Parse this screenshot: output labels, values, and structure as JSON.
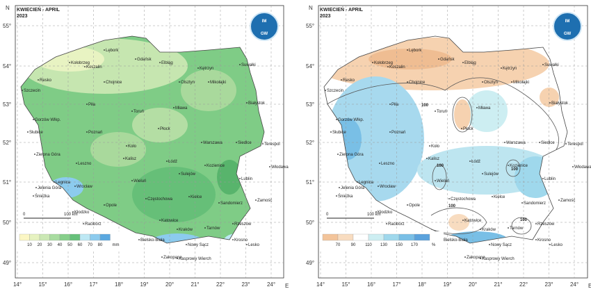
{
  "compass": {
    "north": "N",
    "east": "E"
  },
  "lat_labels": [
    "55°",
    "54°",
    "53°",
    "52°",
    "51°",
    "50°",
    "49°"
  ],
  "lon_labels": [
    "14°",
    "15°",
    "16°",
    "17°",
    "18°",
    "19°",
    "20°",
    "21°",
    "22°",
    "23°",
    "24°"
  ],
  "scale_bar": {
    "start": "0",
    "end": "100 km"
  },
  "cities": [
    "Kołobrzeg",
    "Koszalin",
    "Lębork",
    "Gdańsk",
    "Elbląg",
    "Kętrzyn",
    "Suwałki",
    "Resko",
    "Szczecin",
    "Chojnice",
    "Olsztyn",
    "Mikołajki",
    "Białystok",
    "Toruń",
    "Mława",
    "Gorzów Wlkp.",
    "Piła",
    "Płock",
    "Poznań",
    "Warszawa",
    "Siedlce",
    "Terespol",
    "Słubice",
    "Zielona Góra",
    "Koło",
    "Łódź",
    "Kalisz",
    "Kozienice",
    "Włodawa",
    "Leszno",
    "Legnica",
    "Wieluń",
    "Sulejów",
    "Lublin",
    "Jelenia Góra",
    "Wrocław",
    "Kielce",
    "Sandomierz",
    "Zamość",
    "Śnieżka",
    "Opole",
    "Racibórz",
    "Częstochowa",
    "Kłodzko",
    "Katowice",
    "Tarnów",
    "Rzeszów",
    "Krosno",
    "Kraków",
    "Bielsko-Biała",
    "Nowy Sącz",
    "Lesko",
    "Zakopane",
    "Kasprowy Wierch"
  ],
  "panels": [
    {
      "title": "KWIECIEŃ - APRIL",
      "year": "2023",
      "logo": [
        "IM",
        "GW"
      ],
      "legend": {
        "labels": [
          "10",
          "20",
          "30",
          "40",
          "50",
          "60",
          "70",
          "80"
        ],
        "unit": "mm",
        "colors": [
          "#fbf6c4",
          "#e6f2c0",
          "#cbe8b4",
          "#a8dca0",
          "#86cf8a",
          "#66c07a",
          "#bde8f4",
          "#8ccbee",
          "#5aa8e0"
        ]
      }
    },
    {
      "title": "KWIECIEŃ - APRIL",
      "year": "2023",
      "logo": [
        "IM",
        "GW"
      ],
      "legend": {
        "labels": [
          "70",
          "90",
          "110",
          "130",
          "150",
          "170"
        ],
        "unit": "%",
        "colors": [
          "#f3c49a",
          "#f8dcc0",
          "#ffffff",
          "#cdeef2",
          "#9fd8ec",
          "#79bfe6",
          "#5aa2dc"
        ]
      },
      "contour_labels": [
        "100",
        "100",
        "100",
        "100",
        "100"
      ]
    }
  ]
}
